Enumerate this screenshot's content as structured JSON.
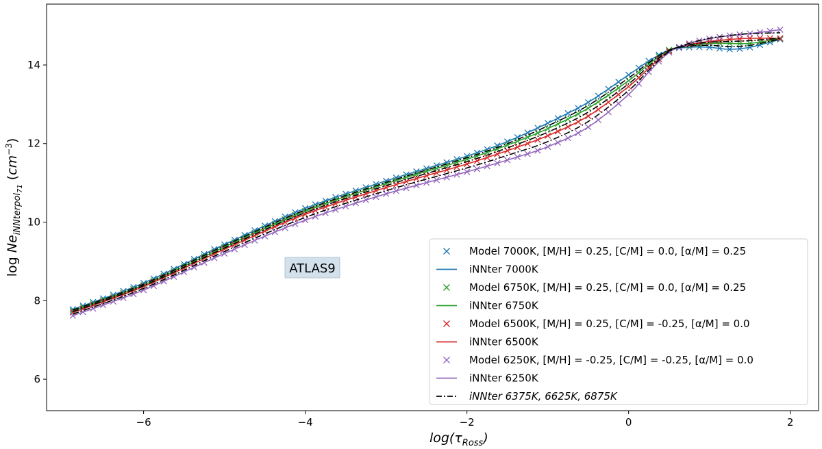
{
  "chart_data": {
    "type": "line",
    "xlabel": "log(τ_Ross)",
    "ylabel": "log Ne_iNNterpol71 (cm^-3)",
    "xlim": [
      -7.2,
      2.35
    ],
    "ylim": [
      5.2,
      15.55
    ],
    "xticks": [
      -6,
      -4,
      -2,
      0,
      2
    ],
    "yticks": [
      6,
      8,
      10,
      12,
      14
    ],
    "xtick_labels": [
      "−6",
      "−4",
      "−2",
      "0",
      "2"
    ],
    "ytick_labels": [
      "6",
      "8",
      "10",
      "12",
      "14"
    ],
    "grid": false,
    "legend_position": "lower-right",
    "annotation": "ATLAS9",
    "x_range": [
      -6.875,
      1.875
    ],
    "n_depth_points": 71,
    "series": [
      {
        "name": "Model 7000K, [M/H] = 0.25, [C/M] = 0.0,  [α/M] = 0.25",
        "legend_label": "Model 7000K, [M/H] = 0.25, [C/M] = 0.0,  [α/M] = 0.25",
        "model_label": "Model 7000K, [M/H] = 0.25, [C/M] = 0.0,  [α/M] = 0.25",
        "line_label": "iNNter 7000K",
        "color": "#1f77b4",
        "x": [
          -6.875,
          -6,
          -5,
          -4,
          -3,
          -2,
          -1.5,
          -1,
          -0.5,
          0,
          0.25,
          0.5,
          0.75,
          1,
          1.25,
          1.5,
          1.875
        ],
        "y": [
          7.78,
          8.45,
          9.43,
          10.35,
          11.05,
          11.68,
          12.05,
          12.52,
          13.05,
          13.75,
          14.1,
          14.38,
          14.45,
          14.45,
          14.4,
          14.45,
          14.65
        ]
      },
      {
        "name": "Model 6750K, [M/H] = 0.25, [C/M] = 0.0,  [α/M] = 0.25",
        "legend_label": "Model 6750K, [M/H] = 0.25, [C/M] = 0.0,  [α/M] = 0.25",
        "model_label": "Model 6750K, [M/H] = 0.25, [C/M] = 0.0,  [α/M] = 0.25",
        "line_label": "iNNter 6750K",
        "color": "#2ca02c",
        "x": [
          -6.875,
          -6,
          -5,
          -4,
          -3,
          -2,
          -1.5,
          -1,
          -0.5,
          0,
          0.25,
          0.5,
          0.75,
          1,
          1.25,
          1.5,
          1.875
        ],
        "y": [
          7.74,
          8.4,
          9.37,
          10.28,
          10.98,
          11.6,
          11.96,
          12.38,
          12.9,
          13.6,
          14.02,
          14.38,
          14.5,
          14.55,
          14.55,
          14.55,
          14.67
        ]
      },
      {
        "name": "Model 6500K, [M/H] = 0.25, [C/M] = -0.25,  [α/M] = 0.0",
        "legend_label": "Model 6500K, [M/H] = 0.25, [C/M] = -0.25,  [α/M] = 0.0",
        "model_label": "Model 6500K, [M/H] = 0.25, [C/M] = -0.25,  [α/M] = 0.0",
        "line_label": "iNNter 6500K",
        "color": "#d62728",
        "x": [
          -6.875,
          -6,
          -5,
          -4,
          -3,
          -2,
          -1.5,
          -1,
          -0.5,
          0,
          0.25,
          0.5,
          0.75,
          1,
          1.25,
          1.5,
          1.875
        ],
        "y": [
          7.7,
          8.36,
          9.31,
          10.2,
          10.88,
          11.48,
          11.82,
          12.2,
          12.7,
          13.45,
          13.92,
          14.35,
          14.52,
          14.6,
          14.65,
          14.68,
          14.68
        ]
      },
      {
        "name": "Model 6250K, [M/H] = -0.25, [C/M] = -0.25,  [α/M] = 0.0",
        "legend_label": "Model 6250K, [M/H] = -0.25, [C/M] = -0.25,  [α/M] = 0.0",
        "model_label": "Model 6250K, [M/H] = -0.25, [C/M] = -0.25,  [α/M] = 0.0",
        "line_label": "iNNter 6250K",
        "color": "#9467bd",
        "x": [
          -6.875,
          -6,
          -5,
          -4,
          -3,
          -2,
          -1.5,
          -1,
          -0.5,
          0,
          0.25,
          0.5,
          0.75,
          1,
          1.25,
          1.5,
          1.875
        ],
        "y": [
          7.62,
          8.27,
          9.2,
          10.05,
          10.72,
          11.28,
          11.58,
          11.92,
          12.42,
          13.25,
          13.82,
          14.32,
          14.55,
          14.67,
          14.75,
          14.8,
          14.9
        ]
      }
    ],
    "interpolated_series": {
      "name": "iNNter 6375K, 6625K, 6875K",
      "legend_label": "iNNter 6375K,  6625K,  6875K",
      "color": "#000000",
      "style": "dashdot",
      "lines": [
        {
          "temperature": "6875K",
          "x": [
            -6.875,
            -6,
            -5,
            -4,
            -3,
            -2,
            -1.5,
            -1,
            -0.5,
            0,
            0.25,
            0.5,
            0.75,
            1,
            1.25,
            1.5,
            1.875
          ],
          "y": [
            7.76,
            8.42,
            9.4,
            10.31,
            11.01,
            11.64,
            12.0,
            12.45,
            12.97,
            13.67,
            14.06,
            14.38,
            14.48,
            14.5,
            14.47,
            14.5,
            14.66
          ]
        },
        {
          "temperature": "6625K",
          "x": [
            -6.875,
            -6,
            -5,
            -4,
            -3,
            -2,
            -1.5,
            -1,
            -0.5,
            0,
            0.25,
            0.5,
            0.75,
            1,
            1.25,
            1.5,
            1.875
          ],
          "y": [
            7.72,
            8.38,
            9.34,
            10.24,
            10.93,
            11.54,
            11.89,
            12.29,
            12.8,
            13.52,
            13.97,
            14.36,
            14.51,
            14.58,
            14.6,
            14.62,
            14.68
          ]
        },
        {
          "temperature": "6375K",
          "x": [
            -6.875,
            -6,
            -5,
            -4,
            -3,
            -2,
            -1.5,
            -1,
            -0.5,
            0,
            0.25,
            0.5,
            0.75,
            1,
            1.25,
            1.5,
            1.875
          ],
          "y": [
            7.66,
            8.31,
            9.25,
            10.12,
            10.8,
            11.38,
            11.7,
            12.05,
            12.56,
            13.35,
            13.87,
            14.34,
            14.55,
            14.68,
            14.75,
            14.8,
            14.82
          ]
        }
      ]
    }
  }
}
